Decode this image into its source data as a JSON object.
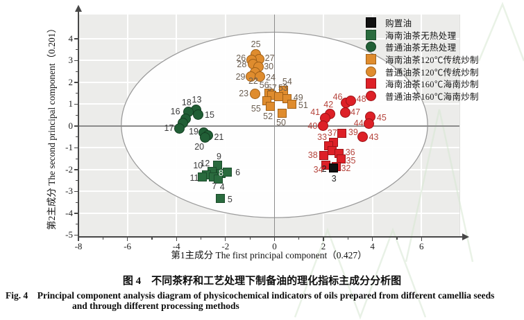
{
  "caption": {
    "zh": "图 4　不同茶籽和工艺处理下制备油的理化指标主成分分析图",
    "en": "Fig. 4　Principal component analysis diagram of physicochemical indicators of oils prepared from different camellia seeds",
    "en2": "and through different processing methods"
  },
  "chart_data": {
    "type": "scatter",
    "title": "",
    "xlabel": "第1主成分 The first principal component（0.427）",
    "ylabel": "第2主成分 The second principal component（0.201）",
    "xlim": [
      -8,
      7.55
    ],
    "ylim": [
      -5.08,
      5.11
    ],
    "x_tick_values": [
      -8,
      -6,
      -4,
      -2,
      0,
      2,
      4,
      6
    ],
    "y_tick_values": [
      4,
      3,
      2,
      1,
      0,
      -1,
      -2,
      -3,
      -4,
      -5
    ],
    "grid": true,
    "legend_position": "top-right",
    "confidence_ellipse": {
      "cx": 0,
      "cy": 0.05,
      "rx": 6.25,
      "ry": 4.25
    },
    "colors": {
      "black": "#111111",
      "green_square": "#2a6b3e",
      "green_circle": "#215f36",
      "orange": "#df8c2e",
      "red": "#dd2027",
      "plot_bg": "#ececea",
      "zero_line": "#8b8b8b",
      "ellipse_stroke": "#9b9b9b"
    },
    "series": [
      {
        "name": "购置油",
        "marker": "square",
        "color": "#111111",
        "stroke": "#000000",
        "label_color": "#1f1f1f",
        "points": [
          {
            "label": "3",
            "x": 2.4,
            "y": -1.93,
            "ldx": 1,
            "ldy": 15,
            "z": 6
          },
          {
            "label": "2",
            "x": 2.17,
            "y": -1.8,
            "ldx": -5,
            "ldy": 5,
            "no_marker": true
          }
        ]
      },
      {
        "name": "海南油茶无热处理",
        "marker": "square",
        "color": "#2a6b3e",
        "stroke": "#1b4c2b",
        "label_color": "#3a3a3a",
        "points": [
          {
            "label": "9",
            "x": -2.32,
            "y": -1.8,
            "ldx": 2,
            "ldy": -13
          },
          {
            "label": "12",
            "x": -2.55,
            "y": -2.08,
            "ldx": -10,
            "ldy": -11
          },
          {
            "label": "10",
            "x": -2.78,
            "y": -2.23,
            "ldx": -12,
            "ldy": -13
          },
          {
            "label": "11",
            "x": -2.93,
            "y": -2.32,
            "ldx": -12,
            "ldy": 2
          },
          {
            "label": "8",
            "x": -2.18,
            "y": -2.16,
            "ldx": 0,
            "ldy": 0,
            "lc": "#f2f2f2"
          },
          {
            "label": "6",
            "x": -1.92,
            "y": -2.1,
            "ldx": 15,
            "ldy": 1
          },
          {
            "label": "7",
            "x": -2.48,
            "y": -2.33,
            "ldx": 1,
            "ldy": 14
          },
          {
            "label": "4",
            "x": -2.3,
            "y": -2.42,
            "ldx": 6,
            "ldy": 12
          },
          {
            "label": "5",
            "x": -2.21,
            "y": -3.33,
            "ldx": 14,
            "ldy": 1
          }
        ]
      },
      {
        "name": "普通油茶无热处理",
        "marker": "circle",
        "color": "#215f36",
        "stroke": "#143f22",
        "label_color": "#3a3a3a",
        "points": [
          {
            "label": "13",
            "x": -3.2,
            "y": 0.76,
            "ldx": 1,
            "ldy": -14
          },
          {
            "label": "18",
            "x": -3.5,
            "y": 0.64,
            "ldx": -3,
            "ldy": -14
          },
          {
            "label": "15",
            "x": -3.1,
            "y": 0.52,
            "ldx": 16,
            "ldy": 0
          },
          {
            "label": "16",
            "x": -3.62,
            "y": 0.34,
            "ldx": -15,
            "ldy": -10
          },
          {
            "x": -3.73,
            "y": 0.15
          },
          {
            "label": "17",
            "x": -3.88,
            "y": -0.1,
            "ldx": -15,
            "ldy": 0
          },
          {
            "label": "19",
            "x": -2.9,
            "y": -0.3,
            "ldx": -14,
            "ldy": -1
          },
          {
            "label": "21",
            "x": -2.72,
            "y": -0.43,
            "ldx": 16,
            "ldy": 2
          },
          {
            "label": "20",
            "x": -2.84,
            "y": -0.52,
            "ldx": -8,
            "ldy": 14
          }
        ]
      },
      {
        "name": "海南油茶120℃传统炒制",
        "marker": "square",
        "color": "#df8c2e",
        "stroke": "#a06018",
        "label_color": "#6b5e51",
        "points": [
          {
            "label": "54",
            "x": 0.38,
            "y": 1.62,
            "ldx": 5,
            "ldy": -13
          },
          {
            "label": "56",
            "x": -0.22,
            "y": 1.5,
            "ldx": -7,
            "ldy": -12
          },
          {
            "label": "57",
            "x": -0.1,
            "y": 1.4,
            "ldx": 0,
            "ldy": -11
          },
          {
            "label": "53",
            "x": 0.18,
            "y": 1.36,
            "ldx": 6,
            "ldy": -12
          },
          {
            "label": "49",
            "x": 0.52,
            "y": 1.25,
            "ldx": 16,
            "ldy": -2
          },
          {
            "label": "51",
            "x": 0.72,
            "y": 1.0,
            "ldx": 16,
            "ldy": 2
          },
          {
            "label": "55",
            "x": -0.3,
            "y": 1.15,
            "ldx": -16,
            "ldy": 11
          },
          {
            "label": "52",
            "x": -0.18,
            "y": 0.9,
            "ldx": -3,
            "ldy": 14
          },
          {
            "label": "50",
            "x": 0.3,
            "y": 0.6,
            "ldx": -1,
            "ldy": 14
          }
        ]
      },
      {
        "name": "普通油茶120℃传统炒制",
        "marker": "circle",
        "color": "#df8c2e",
        "stroke": "#a06018",
        "label_color": "#6b5e51",
        "points": [
          {
            "label": "25",
            "x": -0.76,
            "y": 3.3,
            "ldx": 0,
            "ldy": -14
          },
          {
            "label": "27",
            "x": -0.62,
            "y": 3.05,
            "ldx": 15,
            "ldy": -2
          },
          {
            "label": "26",
            "x": -0.94,
            "y": 3.02,
            "ldx": -15,
            "ldy": -3
          },
          {
            "label": "28",
            "x": -0.88,
            "y": 2.84,
            "ldx": -16,
            "ldy": 0
          },
          {
            "label": "30",
            "x": -0.66,
            "y": 2.72,
            "ldx": 15,
            "ldy": 0
          },
          {
            "label": "22",
            "x": -0.78,
            "y": 2.46,
            "ldx": -3,
            "ldy": 13
          },
          {
            "label": "29",
            "x": -0.96,
            "y": 2.28,
            "ldx": -15,
            "ldy": 1
          },
          {
            "label": "24",
            "x": -0.58,
            "y": 2.28,
            "ldx": 15,
            "ldy": 2
          },
          {
            "label": "23",
            "x": -0.8,
            "y": 1.49,
            "ldx": -16,
            "ldy": 0
          }
        ]
      },
      {
        "name": "海南油茶160℃海南炒制",
        "marker": "square",
        "color": "#dd2027",
        "stroke": "#9c1317",
        "label_color": "#b5443c",
        "points": [
          {
            "label": "39",
            "x": 2.76,
            "y": -0.33,
            "ldx": 16,
            "ldy": -1
          },
          {
            "label": "37",
            "x": 2.42,
            "y": -0.74,
            "ldx": -2,
            "ldy": -13
          },
          {
            "label": "33",
            "x": 2.2,
            "y": -0.9,
            "ldx": -9,
            "ldy": -12
          },
          {
            "x": 2.36,
            "y": -1.14
          },
          {
            "label": "36",
            "x": 2.64,
            "y": -1.26,
            "ldx": 16,
            "ldy": -2
          },
          {
            "label": "35",
            "x": 2.72,
            "y": -1.5,
            "ldx": 14,
            "ldy": 3
          },
          {
            "label": "38",
            "x": 2.02,
            "y": -1.36,
            "ldx": -16,
            "ldy": -1
          },
          {
            "label": "34",
            "x": 2.1,
            "y": -1.8,
            "ldx": -11,
            "ldy": 6
          },
          {
            "label": "32",
            "x": 2.52,
            "y": -1.86,
            "ldx": 14,
            "ldy": 2
          }
        ]
      },
      {
        "name": "普通油茶160℃海南炒制",
        "marker": "circle",
        "color": "#dd2027",
        "stroke": "#9c1317",
        "label_color": "#b5443c",
        "points": [
          {
            "label": "46",
            "x": 2.92,
            "y": 1.05,
            "ldx": -12,
            "ldy": -9
          },
          {
            "label": "48",
            "x": 3.12,
            "y": 1.16,
            "ldx": 15,
            "ldy": -2
          },
          {
            "label": "47",
            "x": 2.88,
            "y": 0.62,
            "ldx": 15,
            "ldy": 0
          },
          {
            "label": "42",
            "x": 2.26,
            "y": 0.56,
            "ldx": -2,
            "ldy": -13
          },
          {
            "label": "41",
            "x": 2.06,
            "y": 0.38,
            "ldx": -14,
            "ldy": -8
          },
          {
            "label": "40",
            "x": 1.98,
            "y": 0.03,
            "ldx": -15,
            "ldy": 1
          },
          {
            "label": "45",
            "x": 3.92,
            "y": 0.42,
            "ldx": 16,
            "ldy": 1
          },
          {
            "label": "44",
            "x": 3.86,
            "y": 0.1,
            "ldx": -15,
            "ldy": -1
          },
          {
            "label": "43",
            "x": 3.6,
            "y": -0.49,
            "ldx": 16,
            "ldy": 1
          }
        ]
      }
    ]
  }
}
